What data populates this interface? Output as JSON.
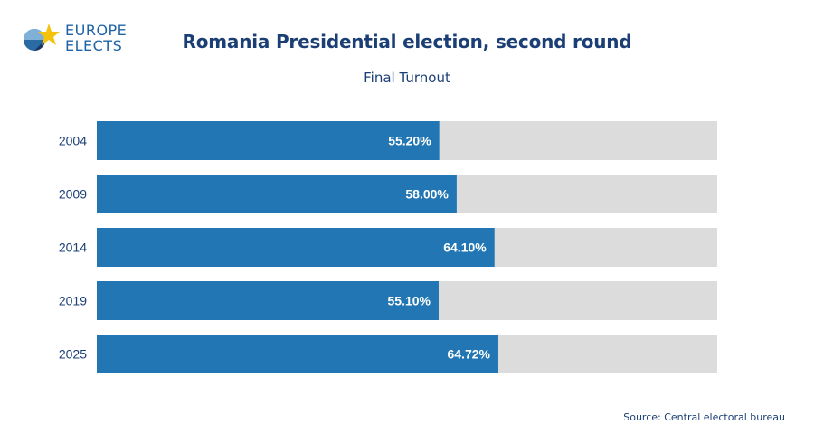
{
  "logo": {
    "line1": "EUROPE",
    "line2": "ELECTS"
  },
  "title": "Romania Presidential election, second round",
  "subtitle": "Final Turnout",
  "source": "Source: Central electoral bureau",
  "colors": {
    "bar": "#2176b3",
    "track": "#dcdcdc",
    "text": "#1b3f75",
    "label": "#ffffff"
  },
  "chart_data": {
    "type": "bar",
    "orientation": "horizontal",
    "title": "Romania Presidential election, second round",
    "subtitle": "Final Turnout",
    "categories": [
      "2004",
      "2009",
      "2014",
      "2019",
      "2025"
    ],
    "values": [
      55.2,
      58.0,
      64.1,
      55.1,
      64.72
    ],
    "value_labels": [
      "55.20%",
      "58.00%",
      "64.10%",
      "55.10%",
      "64.72%"
    ],
    "xlim": [
      0,
      100
    ],
    "unit": "%",
    "grid": false
  }
}
